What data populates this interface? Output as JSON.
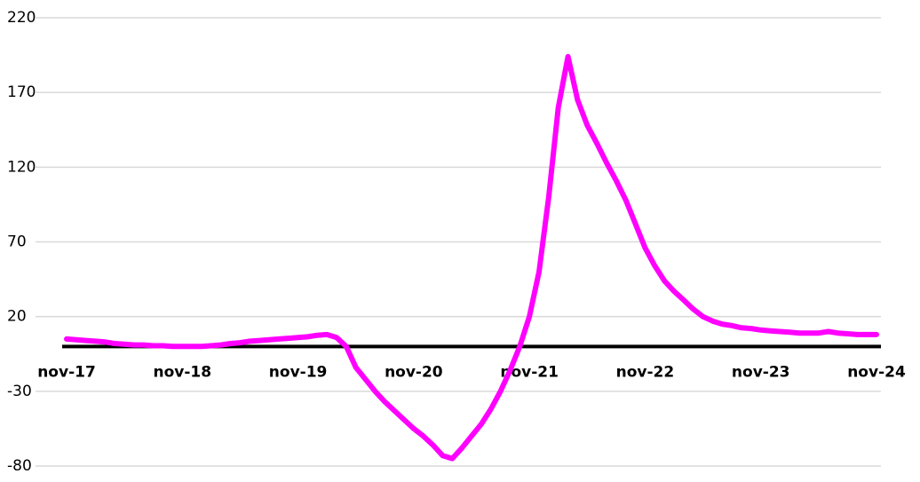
{
  "chart_data": {
    "type": "line",
    "categories": [
      "nov-17",
      null,
      null,
      null,
      null,
      null,
      null,
      null,
      null,
      null,
      null,
      null,
      "nov-18",
      null,
      null,
      null,
      null,
      null,
      null,
      null,
      null,
      null,
      null,
      null,
      "nov-19",
      null,
      null,
      null,
      null,
      null,
      null,
      null,
      null,
      null,
      null,
      null,
      "nov-20",
      null,
      null,
      null,
      null,
      null,
      null,
      null,
      null,
      null,
      null,
      null,
      "nov-21",
      null,
      null,
      null,
      null,
      null,
      null,
      null,
      null,
      null,
      null,
      null,
      "nov-22",
      null,
      null,
      null,
      null,
      null,
      null,
      null,
      null,
      null,
      null,
      null,
      "nov-23",
      null,
      null,
      null,
      null,
      null,
      null,
      null,
      null,
      null,
      null,
      null,
      "nov-24"
    ],
    "series": [
      {
        "color": "#ff00ff",
        "values": [
          5,
          4.5,
          4,
          3.5,
          3,
          2,
          1.5,
          1,
          1,
          0.5,
          0.5,
          0,
          0,
          0,
          0,
          0.5,
          1,
          2,
          2.5,
          3.5,
          4,
          4.5,
          5,
          5.5,
          6,
          6.5,
          7.5,
          8,
          6,
          0,
          -14,
          -22,
          -30,
          -37,
          -43,
          -49,
          -55,
          -60,
          -66,
          -73,
          -75,
          -68,
          -60,
          -52,
          -42,
          -30,
          -16,
          0,
          20,
          50,
          100,
          160,
          194,
          165,
          148,
          136,
          123,
          111,
          98,
          82,
          66,
          54,
          44,
          37,
          31,
          25,
          20,
          17,
          15,
          14,
          12.5,
          12,
          11,
          10.5,
          10,
          9.5,
          9,
          9,
          9,
          10,
          9,
          8.5,
          8,
          8,
          8
        ]
      }
    ],
    "ylim": [
      -85,
      225
    ],
    "yticks": [
      220,
      170,
      120,
      70,
      20,
      -30,
      -80
    ],
    "grid": true
  }
}
